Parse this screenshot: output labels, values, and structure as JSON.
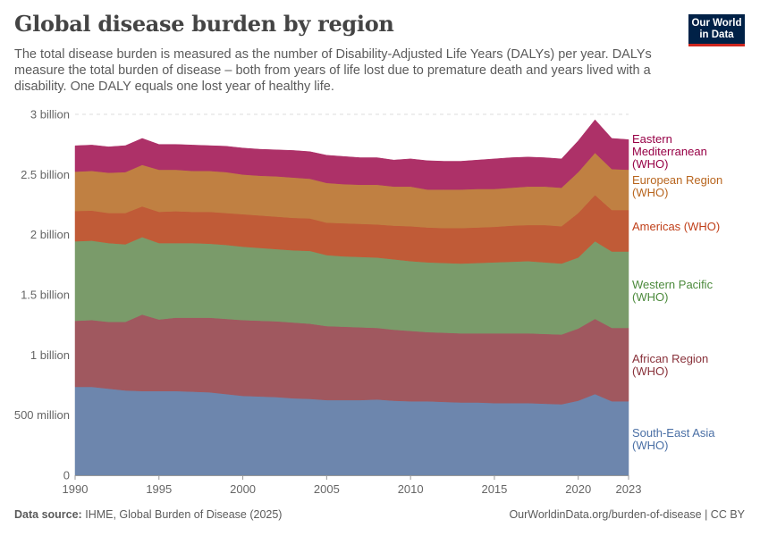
{
  "header": {
    "title": "Global disease burden by region",
    "subtitle": "The total disease burden is measured as the number of Disability-Adjusted Life Years (DALYs) per year. DALYs measure the total burden of disease – both from years of life lost due to premature death and years lived with a disability. One DALY equals one lost year of healthy life.",
    "logo": "Our World in Data"
  },
  "footer": {
    "source_label": "Data source:",
    "source": "IHME, Global Burden of Disease (2025)",
    "link": "OurWorldinData.org/burden-of-disease | CC BY"
  },
  "chart_data": {
    "type": "area",
    "stacked": true,
    "unit": "DALYs",
    "x": [
      1990,
      1991,
      1992,
      1993,
      1994,
      1995,
      1996,
      1997,
      1998,
      1999,
      2000,
      2001,
      2002,
      2003,
      2004,
      2005,
      2006,
      2007,
      2008,
      2009,
      2010,
      2011,
      2012,
      2013,
      2014,
      2015,
      2016,
      2017,
      2018,
      2019,
      2020,
      2021,
      2022,
      2023
    ],
    "xticks": [
      "1990",
      "1995",
      "2000",
      "2005",
      "2010",
      "2015",
      "2020",
      "2023"
    ],
    "ylim": [
      0,
      3000000000
    ],
    "yticks": [
      {
        "value": 0,
        "label": "0"
      },
      {
        "value": 500000000,
        "label": "500 million"
      },
      {
        "value": 1000000000,
        "label": "1 billion"
      },
      {
        "value": 1500000000,
        "label": "1.5 billion"
      },
      {
        "value": 2000000000,
        "label": "2 billion"
      },
      {
        "value": 2500000000,
        "label": "2.5 billion"
      },
      {
        "value": 3000000000,
        "label": "3 billion"
      }
    ],
    "grid": true,
    "legend": "right-inline",
    "series_unit_scale": "millions",
    "series": [
      {
        "name": "South-East Asia (WHO)",
        "label_lines": [
          "South-East Asia",
          "(WHO)"
        ],
        "color": "#6d86ad",
        "label_color": "#4a6fa5",
        "values": [
          735,
          735,
          720,
          705,
          700,
          700,
          700,
          695,
          690,
          675,
          660,
          655,
          650,
          640,
          635,
          625,
          625,
          625,
          630,
          620,
          615,
          615,
          610,
          605,
          605,
          600,
          600,
          600,
          595,
          590,
          620,
          675,
          615,
          615
        ]
      },
      {
        "name": "African Region (WHO)",
        "label_lines": [
          "African Region",
          "(WHO)"
        ],
        "color": "#a0585f",
        "label_color": "#883039",
        "values": [
          549,
          555,
          555,
          570,
          636,
          595,
          610,
          615,
          620,
          625,
          630,
          630,
          630,
          630,
          625,
          615,
          610,
          605,
          595,
          590,
          585,
          575,
          575,
          575,
          575,
          580,
          580,
          580,
          580,
          580,
          600,
          625,
          610,
          610
        ]
      },
      {
        "name": "Western Pacific (WHO)",
        "label_lines": [
          "Western Pacific",
          "(WHO)"
        ],
        "color": "#7a9b6a",
        "label_color": "#4c8a3c",
        "values": [
          661,
          660,
          655,
          645,
          644,
          635,
          620,
          620,
          615,
          615,
          610,
          605,
          600,
          600,
          605,
          590,
          585,
          585,
          585,
          585,
          580,
          580,
          580,
          580,
          585,
          590,
          595,
          600,
          595,
          590,
          590,
          645,
          635,
          635
        ]
      },
      {
        "name": "Americas (WHO)",
        "label_lines": [
          "Americas (WHO)"
        ],
        "color": "#c05b37",
        "label_color": "#c0401a",
        "values": [
          252,
          250,
          250,
          260,
          255,
          260,
          265,
          260,
          265,
          265,
          270,
          270,
          270,
          270,
          270,
          270,
          275,
          275,
          275,
          280,
          290,
          290,
          290,
          295,
          295,
          295,
          300,
          300,
          310,
          310,
          370,
          385,
          345,
          345
        ]
      },
      {
        "name": "European Region (WHO)",
        "label_lines": [
          "European Region",
          "(WHO)"
        ],
        "color": "#c08042",
        "label_color": "#b8651e",
        "values": [
          327,
          330,
          335,
          340,
          345,
          350,
          345,
          340,
          340,
          340,
          330,
          330,
          335,
          335,
          330,
          330,
          325,
          325,
          330,
          325,
          330,
          315,
          320,
          320,
          320,
          315,
          315,
          320,
          320,
          320,
          340,
          350,
          340,
          335
        ]
      },
      {
        "name": "Eastern Mediterranean (WHO)",
        "label_lines": [
          "Eastern",
          "Mediterranean",
          "(WHO)"
        ],
        "color": "#ad3168",
        "label_color": "#970046",
        "values": [
          215,
          215,
          215,
          220,
          220,
          210,
          210,
          215,
          210,
          215,
          220,
          220,
          220,
          225,
          225,
          230,
          230,
          225,
          225,
          220,
          230,
          240,
          235,
          235,
          240,
          250,
          250,
          245,
          240,
          240,
          260,
          275,
          255,
          250
        ]
      }
    ]
  }
}
